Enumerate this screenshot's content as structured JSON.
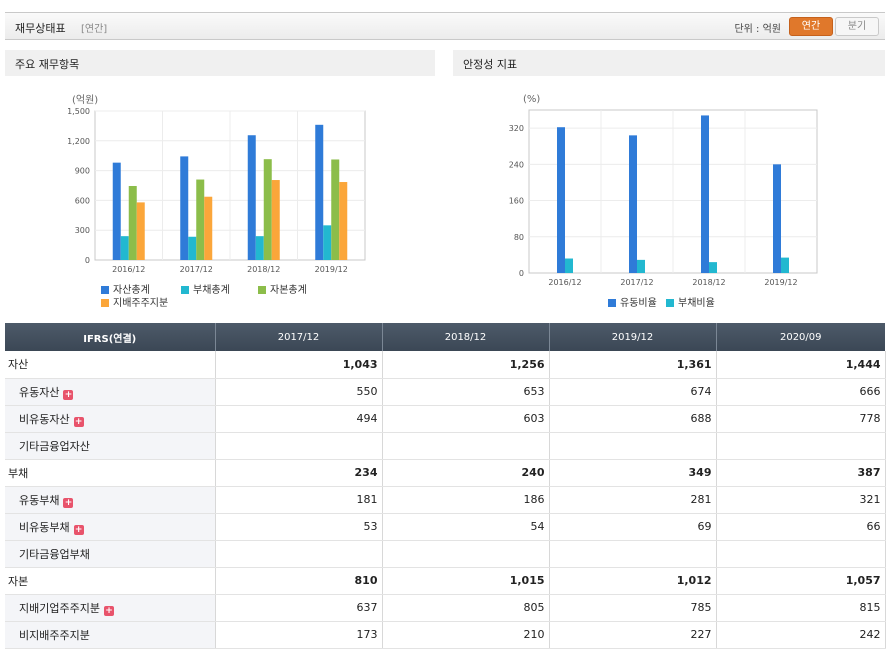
{
  "header": {
    "title": "재무상태표",
    "subtitle": "[연간]",
    "unit_label": "단위 : 억원",
    "annual_label": "연간",
    "quarter_label": "분기"
  },
  "panels": {
    "left_title": "주요 재무항목",
    "right_title": "안정성 지표"
  },
  "colors": {
    "blue": "#2f7bd8",
    "cyan": "#22b8d0",
    "green": "#8cbd4a",
    "orange": "#fba63a"
  },
  "chart_data": [
    {
      "type": "bar",
      "unit_label": "(억원)",
      "categories": [
        "2016/12",
        "2017/12",
        "2018/12",
        "2019/12"
      ],
      "ylim": [
        0,
        1500
      ],
      "yticks": [
        "0",
        "300",
        "600",
        "900",
        "1,200",
        "1,500"
      ],
      "ytick_values": [
        0,
        300,
        600,
        900,
        1200,
        1500
      ],
      "grid": true,
      "legend_position": "bottom",
      "series": [
        {
          "name": "자산총계",
          "color": "#2f7bd8",
          "values": [
            980,
            1043,
            1256,
            1361
          ]
        },
        {
          "name": "부채총계",
          "color": "#22b8d0",
          "values": [
            240,
            234,
            240,
            349
          ]
        },
        {
          "name": "자본총계",
          "color": "#8cbd4a",
          "values": [
            745,
            810,
            1015,
            1012
          ]
        },
        {
          "name": "지배주주지분",
          "color": "#fba63a",
          "values": [
            580,
            637,
            805,
            785
          ]
        }
      ]
    },
    {
      "type": "bar",
      "unit_label": "(%)",
      "categories": [
        "2016/12",
        "2017/12",
        "2018/12",
        "2019/12"
      ],
      "ylim": [
        0,
        360
      ],
      "yticks": [
        "0",
        "80",
        "160",
        "240",
        "320"
      ],
      "ytick_values": [
        0,
        80,
        160,
        240,
        320
      ],
      "grid": true,
      "legend_position": "bottom",
      "series": [
        {
          "name": "유동비율",
          "color": "#2f7bd8",
          "values": [
            322,
            304,
            348,
            240
          ]
        },
        {
          "name": "부채비율",
          "color": "#22b8d0",
          "values": [
            32,
            29,
            24,
            34
          ]
        }
      ]
    }
  ],
  "table": {
    "header": [
      "IFRS(연결)",
      "2017/12",
      "2018/12",
      "2019/12",
      "2020/09"
    ],
    "rows": [
      {
        "label": "자산",
        "level": "main",
        "plus": false,
        "values": [
          "1,043",
          "1,256",
          "1,361",
          "1,444"
        ]
      },
      {
        "label": "유동자산",
        "level": "sub",
        "plus": true,
        "values": [
          "550",
          "653",
          "674",
          "666"
        ]
      },
      {
        "label": "비유동자산",
        "level": "sub",
        "plus": true,
        "values": [
          "494",
          "603",
          "688",
          "778"
        ]
      },
      {
        "label": "기타금융업자산",
        "level": "sub",
        "plus": false,
        "values": [
          "",
          "",
          "",
          ""
        ]
      },
      {
        "label": "부채",
        "level": "main",
        "plus": false,
        "values": [
          "234",
          "240",
          "349",
          "387"
        ]
      },
      {
        "label": "유동부채",
        "level": "sub",
        "plus": true,
        "values": [
          "181",
          "186",
          "281",
          "321"
        ]
      },
      {
        "label": "비유동부채",
        "level": "sub",
        "plus": true,
        "values": [
          "53",
          "54",
          "69",
          "66"
        ]
      },
      {
        "label": "기타금융업부채",
        "level": "sub",
        "plus": false,
        "values": [
          "",
          "",
          "",
          ""
        ]
      },
      {
        "label": "자본",
        "level": "main",
        "plus": false,
        "values": [
          "810",
          "1,015",
          "1,012",
          "1,057"
        ]
      },
      {
        "label": "지배기업주주지분",
        "level": "sub",
        "plus": true,
        "values": [
          "637",
          "805",
          "785",
          "815"
        ]
      },
      {
        "label": "비지배주주지분",
        "level": "sub",
        "plus": false,
        "values": [
          "173",
          "210",
          "227",
          "242"
        ]
      }
    ]
  }
}
